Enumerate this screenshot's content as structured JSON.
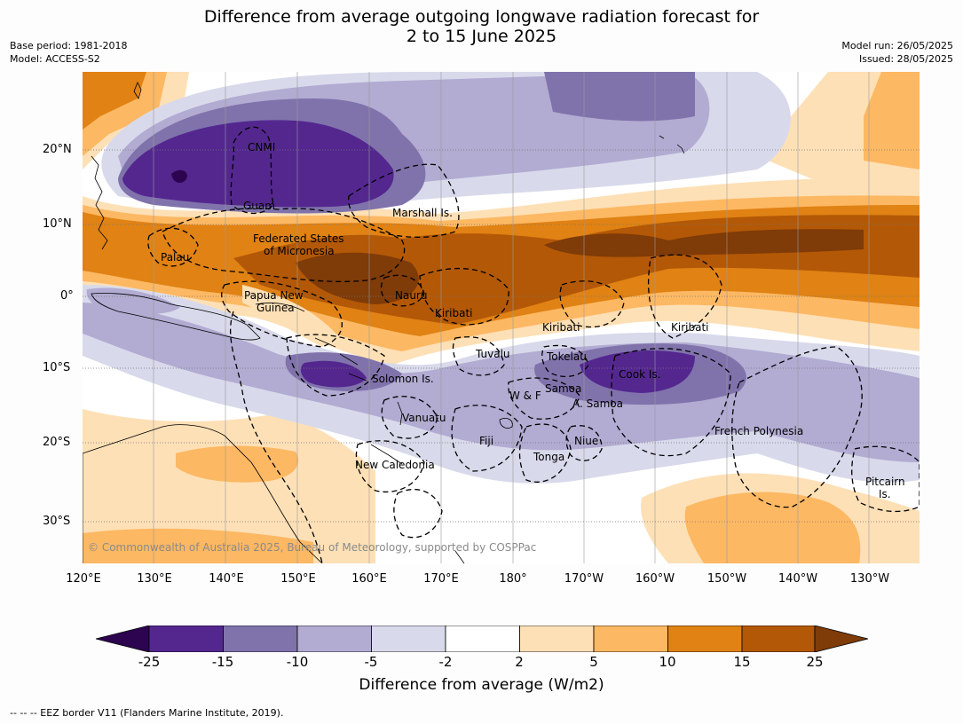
{
  "title": {
    "line1": "Difference from average outgoing longwave radiation forecast for",
    "line2": "2 to 15 June 2025"
  },
  "meta": {
    "base_period": "Base period: 1981-2018",
    "model": "Model: ACCESS-S2",
    "model_run": "Model run: 26/05/2025",
    "issued": "Issued: 28/05/2025"
  },
  "map": {
    "lat_labels": [
      "20°N",
      "10°N",
      "0°",
      "10°S",
      "20°S",
      "30°S"
    ],
    "lon_labels": [
      "120°E",
      "130°E",
      "140°E",
      "150°E",
      "160°E",
      "170°E",
      "180°",
      "170°W",
      "160°W",
      "150°W",
      "140°W",
      "130°W"
    ],
    "places": {
      "cnmi": "CNMI",
      "guam": "Guam",
      "marshall": "Marshall Is.",
      "fsm1": "Federated States",
      "fsm2": "of Micronesia",
      "palau": "Palau",
      "png1": "Papua New",
      "png2": "Guinea",
      "nauru": "Nauru",
      "kiribati1": "Kiribati",
      "kiribati2": "Kiribati",
      "kiribati3": "Kiribati",
      "tuvalu": "Tuvalu",
      "tokelau": "Tokelau",
      "solomon": "Solomon Is.",
      "cook": "Cook Is.",
      "wf": "W & F",
      "samoa": "Samoa",
      "asamoa": "A. Samoa",
      "vanuatu": "Vanuatu",
      "fiji": "Fiji",
      "niue": "Niue",
      "tonga": "Tonga",
      "frpoly": "French Polynesia",
      "newcal": "New Caledonia",
      "pitcairn1": "Pitcairn",
      "pitcairn2": "Is."
    },
    "copyright": "© Commonwealth of Australia 2025, Bureau of Meteorology, supported by COSPPac"
  },
  "colorbar": {
    "ticks": [
      "-25",
      "-15",
      "-10",
      "-5",
      "-2",
      "2",
      "5",
      "10",
      "15",
      "25"
    ],
    "colors": {
      "below_min": "#2d0450",
      "m25_m15": "#54278f",
      "m15_m10": "#8073ac",
      "m10_m5": "#b2abd2",
      "m5_m2": "#d8daeb",
      "m2_p2": "#ffffff",
      "p2_p5": "#fee0b6",
      "p5_p10": "#fdb863",
      "p10_p15": "#e08214",
      "p15_p25": "#b35806",
      "above_max": "#7f3b08"
    },
    "title": "Difference from average (W/m2)"
  },
  "footer": "--  --  -- EEZ border V11 (Flanders Marine Institute, 2019)."
}
